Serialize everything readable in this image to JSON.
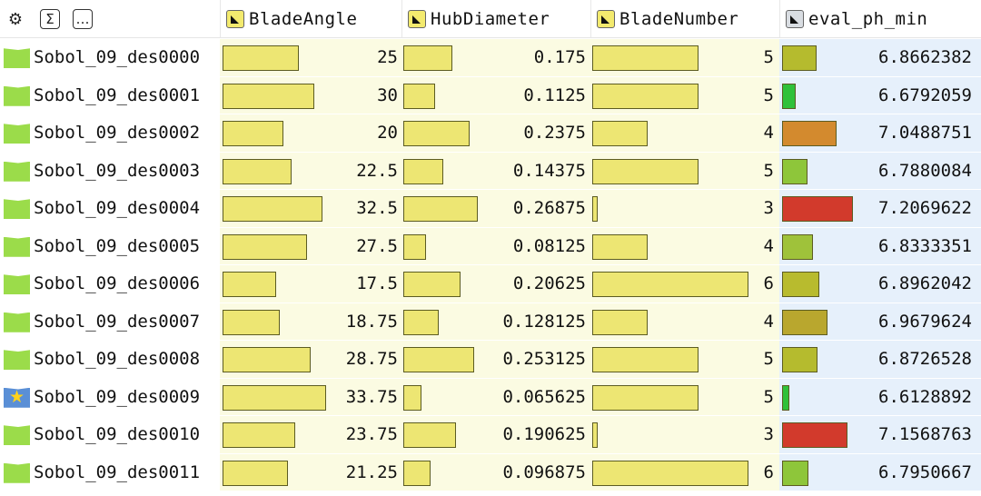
{
  "toolbar": {
    "settings_icon": "gear-icon",
    "sum_label": "Σ",
    "more_label": "…"
  },
  "columns": [
    {
      "key": "BladeAngle",
      "label": "BladeAngle",
      "icon": "yellow-column-icon",
      "range": [
        0,
        35
      ]
    },
    {
      "key": "HubDiameter",
      "label": "HubDiameter",
      "icon": "yellow-column-icon",
      "range": [
        0,
        0.3
      ]
    },
    {
      "key": "BladeNumber",
      "label": "BladeNumber",
      "icon": "yellow-column-icon",
      "range": [
        2.9,
        6.1
      ]
    },
    {
      "key": "eval_ph_min",
      "label": "eval_ph_min",
      "icon": "grey-column-icon",
      "range": [
        6.55,
        7.22
      ]
    }
  ],
  "rows": [
    {
      "name": "Sobol_09_des0000",
      "BladeAngle": "25",
      "HubDiameter": "0.175",
      "BladeNumber": "5",
      "eval_ph_min": "6.8662382",
      "eval_color": "#b5bb2e",
      "icon": "folder-icon"
    },
    {
      "name": "Sobol_09_des0001",
      "BladeAngle": "30",
      "HubDiameter": "0.1125",
      "BladeNumber": "5",
      "eval_ph_min": "6.6792059",
      "eval_color": "#2fc13a",
      "icon": "folder-icon"
    },
    {
      "name": "Sobol_09_des0002",
      "BladeAngle": "20",
      "HubDiameter": "0.2375",
      "BladeNumber": "4",
      "eval_ph_min": "7.0488751",
      "eval_color": "#d38a2e",
      "icon": "folder-icon"
    },
    {
      "name": "Sobol_09_des0003",
      "BladeAngle": "22.5",
      "HubDiameter": "0.14375",
      "BladeNumber": "5",
      "eval_ph_min": "6.7880084",
      "eval_color": "#8ec63a",
      "icon": "folder-icon"
    },
    {
      "name": "Sobol_09_des0004",
      "BladeAngle": "32.5",
      "HubDiameter": "0.26875",
      "BladeNumber": "3",
      "eval_ph_min": "7.2069622",
      "eval_color": "#d23a2c",
      "icon": "folder-icon"
    },
    {
      "name": "Sobol_09_des0005",
      "BladeAngle": "27.5",
      "HubDiameter": "0.08125",
      "BladeNumber": "4",
      "eval_ph_min": "6.8333351",
      "eval_color": "#9fc23a",
      "icon": "folder-icon"
    },
    {
      "name": "Sobol_09_des0006",
      "BladeAngle": "17.5",
      "HubDiameter": "0.20625",
      "BladeNumber": "6",
      "eval_ph_min": "6.8962042",
      "eval_color": "#b8bb2e",
      "icon": "folder-icon"
    },
    {
      "name": "Sobol_09_des0007",
      "BladeAngle": "18.75",
      "HubDiameter": "0.128125",
      "BladeNumber": "4",
      "eval_ph_min": "6.9679624",
      "eval_color": "#b9a72e",
      "icon": "folder-icon"
    },
    {
      "name": "Sobol_09_des0008",
      "BladeAngle": "28.75",
      "HubDiameter": "0.253125",
      "BladeNumber": "5",
      "eval_ph_min": "6.8726528",
      "eval_color": "#b5bb2e",
      "icon": "folder-icon"
    },
    {
      "name": "Sobol_09_des0009",
      "BladeAngle": "33.75",
      "HubDiameter": "0.065625",
      "BladeNumber": "5",
      "eval_ph_min": "6.6128892",
      "eval_color": "#2fc13a",
      "icon": "star-folder-icon"
    },
    {
      "name": "Sobol_09_des0010",
      "BladeAngle": "23.75",
      "HubDiameter": "0.190625",
      "BladeNumber": "3",
      "eval_ph_min": "7.1568763",
      "eval_color": "#d23a2c",
      "icon": "folder-icon"
    },
    {
      "name": "Sobol_09_des0011",
      "BladeAngle": "21.25",
      "HubDiameter": "0.096875",
      "BladeNumber": "6",
      "eval_ph_min": "6.7950667",
      "eval_color": "#8ec63a",
      "icon": "folder-icon"
    }
  ]
}
